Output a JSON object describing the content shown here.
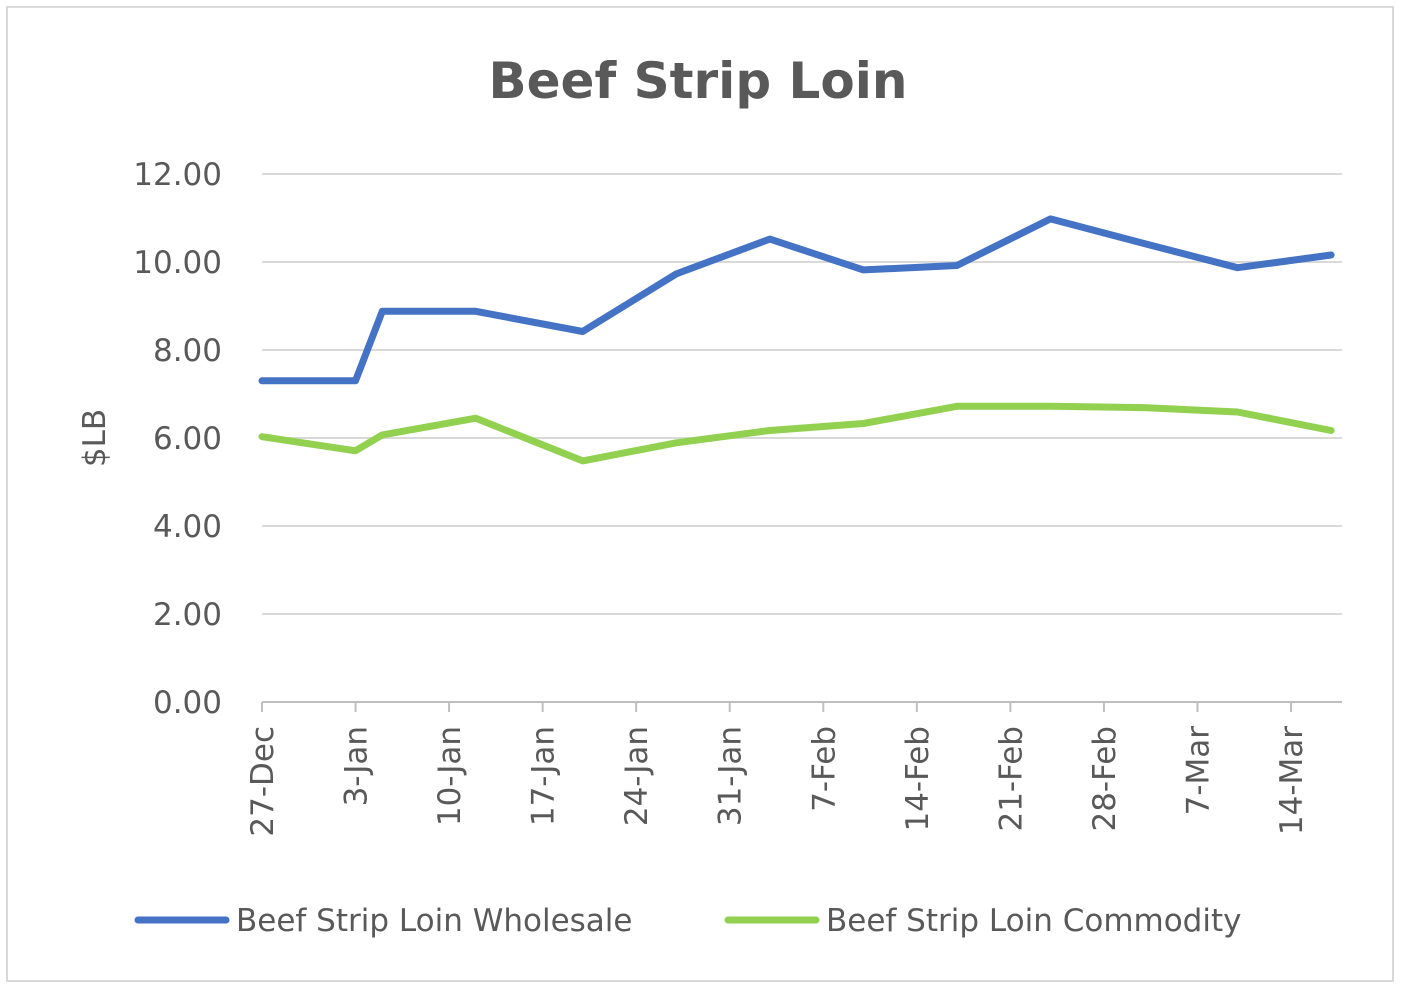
{
  "chart_data": {
    "type": "line",
    "title": "Beef Strip Loin",
    "xlabel": "",
    "ylabel": "$LB",
    "ylim": [
      0,
      12
    ],
    "yticks": [
      "0.00",
      "2.00",
      "4.00",
      "6.00",
      "8.00",
      "10.00",
      "12.00"
    ],
    "xtick_labels": [
      "27-Dec",
      "3-Jan",
      "10-Jan",
      "17-Jan",
      "24-Jan",
      "31-Jan",
      "7-Feb",
      "14-Feb",
      "21-Feb",
      "28-Feb",
      "7-Mar",
      "14-Mar"
    ],
    "x_days": [
      0,
      7,
      9,
      16,
      24,
      31,
      38,
      45,
      52,
      59,
      66,
      73,
      80
    ],
    "series": [
      {
        "name": "Beef Strip Loin Wholesale",
        "color": "#4472C4",
        "values": [
          7.3,
          7.3,
          8.88,
          8.88,
          8.42,
          9.73,
          10.52,
          9.82,
          9.92,
          10.98,
          10.42,
          9.87,
          10.16
        ]
      },
      {
        "name": "Beef Strip Loin Commodity",
        "color": "#92D050",
        "values": [
          6.03,
          5.71,
          6.07,
          6.45,
          5.48,
          5.89,
          6.17,
          6.33,
          6.72,
          6.72,
          6.69,
          6.59,
          6.17
        ]
      }
    ],
    "grid": true,
    "legend": "bottom"
  }
}
